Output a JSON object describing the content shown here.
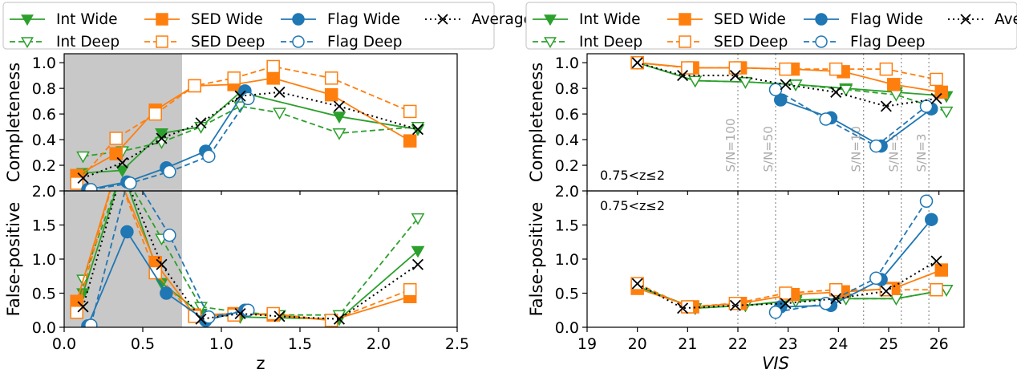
{
  "colors": {
    "int": "#2ca02c",
    "sed": "#ff7f0e",
    "flag": "#1f77b4",
    "avg": "#000000",
    "shade": "#c8c8c8",
    "snr": "#999999"
  },
  "legend": {
    "int_wide": "Int Wide",
    "sed_wide": "SED Wide",
    "flag_wide": "Flag Wide",
    "average": "Average",
    "int_deep": "Int Deep",
    "sed_deep": "SED Deep",
    "flag_deep": "Flag Deep"
  },
  "chart_data": [
    {
      "type": "line",
      "panel": "left",
      "xlabel": "z",
      "ylabel_top": "Completeness",
      "ylabel_bottom": "False-positive",
      "xlim": [
        0.0,
        2.5
      ],
      "ylim_top": [
        0.0,
        1.07
      ],
      "ylim_bottom": [
        0.0,
        2.0
      ],
      "xticks": [
        "0.0",
        "0.5",
        "1.0",
        "1.5",
        "2.0",
        "2.5"
      ],
      "yticks_top": [
        "0.2",
        "0.4",
        "0.6",
        "0.8",
        "1.0"
      ],
      "yticks_bottom": [
        "0.0",
        "0.5",
        "1.0",
        "1.5",
        "2.0"
      ],
      "shaded_region": [
        0.0,
        0.75
      ],
      "top_series": [
        {
          "name": "Int Wide",
          "x": [
            0.12,
            0.37,
            0.62,
            0.87,
            1.12,
            1.75,
            2.25
          ],
          "y": [
            0.14,
            0.16,
            0.45,
            0.5,
            0.77,
            0.58,
            0.48
          ]
        },
        {
          "name": "Int Deep",
          "x": [
            0.12,
            0.37,
            0.62,
            0.87,
            1.12,
            1.37,
            1.75,
            2.25
          ],
          "y": [
            0.27,
            0.31,
            0.38,
            0.5,
            0.66,
            0.61,
            0.45,
            0.5
          ]
        },
        {
          "name": "SED Wide",
          "x": [
            0.08,
            0.33,
            0.58,
            0.83,
            1.08,
            1.33,
            1.7,
            2.2
          ],
          "y": [
            0.12,
            0.29,
            0.63,
            0.82,
            0.83,
            0.88,
            0.75,
            0.39
          ]
        },
        {
          "name": "SED Deep",
          "x": [
            0.08,
            0.33,
            0.58,
            0.83,
            1.08,
            1.33,
            1.7,
            2.2
          ],
          "y": [
            0.06,
            0.41,
            0.6,
            0.82,
            0.88,
            0.97,
            0.88,
            0.62
          ]
        },
        {
          "name": "Flag Wide",
          "x": [
            0.15,
            0.4,
            0.65,
            0.9,
            1.15
          ],
          "y": [
            0.01,
            0.07,
            0.18,
            0.31,
            0.78
          ]
        },
        {
          "name": "Flag Deep",
          "x": [
            0.17,
            0.42,
            0.67,
            0.92,
            1.17
          ],
          "y": [
            0.01,
            0.06,
            0.15,
            0.27,
            0.72
          ]
        },
        {
          "name": "Average",
          "x": [
            0.12,
            0.37,
            0.62,
            0.87,
            1.12,
            1.37,
            1.75,
            2.25
          ],
          "y": [
            0.1,
            0.22,
            0.41,
            0.53,
            0.74,
            0.77,
            0.66,
            0.48
          ]
        }
      ],
      "bottom_series": [
        {
          "name": "Int Wide",
          "x": [
            0.12,
            0.37,
            0.62,
            0.87,
            1.12,
            1.75,
            2.25
          ],
          "y": [
            0.5,
            2.3,
            0.65,
            0.2,
            0.15,
            0.12,
            1.12
          ]
        },
        {
          "name": "Int Deep",
          "x": [
            0.12,
            0.37,
            0.62,
            0.87,
            1.12,
            1.37,
            1.75,
            2.25
          ],
          "y": [
            0.7,
            2.3,
            1.3,
            0.3,
            0.22,
            0.18,
            0.18,
            1.6
          ]
        },
        {
          "name": "SED Wide",
          "x": [
            0.08,
            0.33,
            0.58,
            0.83,
            1.08,
            1.33,
            1.7,
            2.2
          ],
          "y": [
            0.38,
            2.3,
            0.95,
            0.18,
            0.2,
            0.18,
            0.1,
            0.45
          ]
        },
        {
          "name": "SED Deep",
          "x": [
            0.08,
            0.33,
            0.58,
            0.83,
            1.08,
            1.33,
            1.7,
            2.2
          ],
          "y": [
            0.22,
            2.3,
            0.8,
            0.16,
            0.18,
            0.2,
            0.1,
            0.55
          ]
        },
        {
          "name": "Flag Wide",
          "x": [
            0.15,
            0.4,
            0.65,
            0.9,
            1.15
          ],
          "y": [
            0.02,
            1.4,
            0.5,
            0.1,
            0.25
          ]
        },
        {
          "name": "Flag Deep",
          "x": [
            0.17,
            0.42,
            0.67,
            0.92,
            1.17
          ],
          "y": [
            0.03,
            2.3,
            1.35,
            0.15,
            0.25
          ]
        },
        {
          "name": "Average",
          "x": [
            0.12,
            0.37,
            0.62,
            0.87,
            1.12,
            1.37,
            1.75,
            2.25
          ],
          "y": [
            0.3,
            2.3,
            0.92,
            0.12,
            0.2,
            0.16,
            0.12,
            0.92
          ]
        }
      ]
    },
    {
      "type": "line",
      "panel": "right",
      "xlabel": "VIS",
      "ylabel_top": "Completeness",
      "ylabel_bottom": "False-positive",
      "xlim": [
        19.0,
        26.5
      ],
      "ylim_top": [
        0.0,
        1.07
      ],
      "ylim_bottom": [
        0.0,
        2.0
      ],
      "xticks": [
        "19",
        "20",
        "21",
        "22",
        "23",
        "24",
        "25",
        "26"
      ],
      "yticks_top": [
        "0.2",
        "0.4",
        "0.6",
        "0.8",
        "1.0"
      ],
      "yticks_bottom": [
        "0.0",
        "0.5",
        "1.0",
        "1.5",
        "2.0"
      ],
      "annotation_top": "0.75<z≤2",
      "annotation_bottom": "0.75<z≤2",
      "snr_lines": [
        {
          "x": 22.0,
          "label": "S/N=100"
        },
        {
          "x": 22.75,
          "label": "S/N=50"
        },
        {
          "x": 24.5,
          "label": "S/N=10"
        },
        {
          "x": 25.25,
          "label": "S/N=5"
        },
        {
          "x": 25.8,
          "label": "S/N=3"
        }
      ],
      "top_series": [
        {
          "name": "Int Wide",
          "x": [
            20.0,
            21.15,
            22.15,
            23.15,
            24.15,
            25.15,
            26.15
          ],
          "y": [
            1.0,
            0.86,
            0.85,
            0.83,
            0.8,
            0.77,
            0.74
          ]
        },
        {
          "name": "Int Deep",
          "x": [
            20.0,
            21.15,
            22.15,
            23.15,
            24.15,
            25.15,
            26.15
          ],
          "y": [
            1.0,
            0.86,
            0.85,
            0.83,
            0.79,
            0.75,
            0.62
          ]
        },
        {
          "name": "SED Wide",
          "x": [
            20.0,
            21.1,
            22.05,
            23.1,
            24.1,
            25.1,
            26.05
          ],
          "y": [
            1.0,
            0.96,
            0.96,
            0.95,
            0.93,
            0.83,
            0.77
          ]
        },
        {
          "name": "SED Deep",
          "x": [
            20.0,
            21.0,
            21.95,
            22.95,
            23.95,
            24.95,
            25.95
          ],
          "y": [
            1.0,
            0.96,
            0.96,
            0.95,
            0.95,
            0.95,
            0.87
          ]
        },
        {
          "name": "Flag Wide",
          "x": [
            22.85,
            23.85,
            24.85,
            25.85
          ],
          "y": [
            0.71,
            0.57,
            0.35,
            0.64
          ]
        },
        {
          "name": "Flag Deep",
          "x": [
            22.75,
            23.75,
            24.75,
            25.75
          ],
          "y": [
            0.79,
            0.56,
            0.35,
            0.66
          ]
        },
        {
          "name": "Average",
          "x": [
            20.0,
            20.9,
            21.95,
            22.95,
            23.95,
            24.95,
            25.95
          ],
          "y": [
            1.0,
            0.9,
            0.9,
            0.83,
            0.77,
            0.66,
            0.72
          ]
        }
      ],
      "bottom_series": [
        {
          "name": "Int Wide",
          "x": [
            20.0,
            21.15,
            22.15,
            23.15,
            24.15,
            25.15,
            26.15
          ],
          "y": [
            0.6,
            0.28,
            0.32,
            0.4,
            0.42,
            0.42,
            0.55
          ]
        },
        {
          "name": "Int Deep",
          "x": [
            20.0,
            21.15,
            22.15,
            23.15,
            24.15,
            25.15,
            26.15
          ],
          "y": [
            0.6,
            0.28,
            0.32,
            0.38,
            0.42,
            0.42,
            0.55
          ]
        },
        {
          "name": "SED Wide",
          "x": [
            20.0,
            21.1,
            22.05,
            23.1,
            24.1,
            25.1,
            26.05
          ],
          "y": [
            0.57,
            0.3,
            0.35,
            0.48,
            0.52,
            0.57,
            0.84
          ]
        },
        {
          "name": "SED Deep",
          "x": [
            20.0,
            21.0,
            21.95,
            22.95,
            23.95,
            24.95,
            25.95
          ],
          "y": [
            0.64,
            0.3,
            0.35,
            0.5,
            0.55,
            0.55,
            0.55
          ]
        },
        {
          "name": "Flag Wide",
          "x": [
            22.85,
            23.85,
            24.85,
            25.85
          ],
          "y": [
            0.3,
            0.32,
            0.7,
            1.58
          ]
        },
        {
          "name": "Flag Deep",
          "x": [
            22.75,
            23.75,
            24.75,
            25.75
          ],
          "y": [
            0.22,
            0.35,
            0.72,
            1.85
          ]
        },
        {
          "name": "Average",
          "x": [
            20.0,
            20.9,
            21.95,
            22.95,
            23.95,
            24.95,
            25.95
          ],
          "y": [
            0.64,
            0.28,
            0.32,
            0.35,
            0.42,
            0.53,
            0.97
          ]
        }
      ]
    }
  ]
}
